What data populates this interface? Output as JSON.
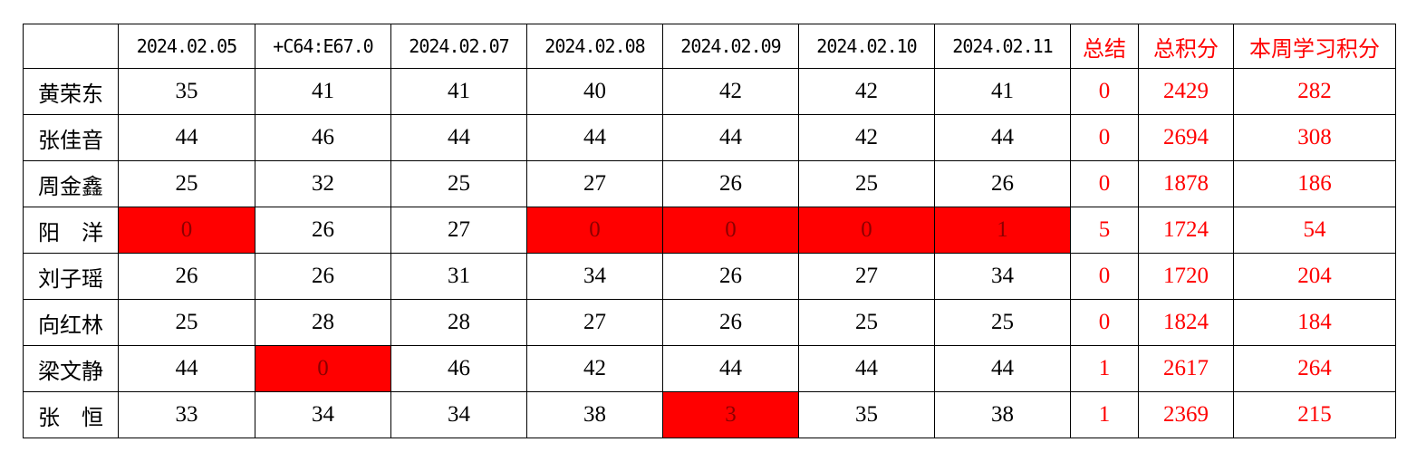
{
  "headers": [
    "",
    "2024.02.05",
    "+C64:E67.0",
    "2024.02.07",
    "2024.02.08",
    "2024.02.09",
    "2024.02.10",
    "2024.02.11",
    "总结",
    "总积分",
    "本周学习积分"
  ],
  "colors": {
    "highlight": "#ff0000",
    "summary_text": "#ff0000"
  },
  "rows": [
    {
      "name": "黄荣东",
      "days": [
        35,
        41,
        41,
        40,
        42,
        42,
        41
      ],
      "summary": 0,
      "total": 2429,
      "weekly": 282
    },
    {
      "name": "张佳音",
      "days": [
        44,
        46,
        44,
        44,
        44,
        42,
        44
      ],
      "summary": 0,
      "total": 2694,
      "weekly": 308
    },
    {
      "name": "周金鑫",
      "days": [
        25,
        32,
        25,
        27,
        26,
        25,
        26
      ],
      "summary": 0,
      "total": 1878,
      "weekly": 186
    },
    {
      "name": "阳　洋",
      "days": [
        0,
        26,
        27,
        0,
        0,
        0,
        1
      ],
      "summary": 5,
      "total": 1724,
      "weekly": 54
    },
    {
      "name": "刘子瑶",
      "days": [
        26,
        26,
        31,
        34,
        26,
        27,
        34
      ],
      "summary": 0,
      "total": 1720,
      "weekly": 204
    },
    {
      "name": "向红林",
      "days": [
        25,
        28,
        28,
        27,
        26,
        25,
        25
      ],
      "summary": 0,
      "total": 1824,
      "weekly": 184
    },
    {
      "name": "梁文静",
      "days": [
        44,
        0,
        46,
        42,
        44,
        44,
        44
      ],
      "summary": 1,
      "total": 2617,
      "weekly": 264
    },
    {
      "name": "张　恒",
      "days": [
        33,
        34,
        34,
        38,
        3,
        35,
        38
      ],
      "summary": 1,
      "total": 2369,
      "weekly": 215
    }
  ]
}
